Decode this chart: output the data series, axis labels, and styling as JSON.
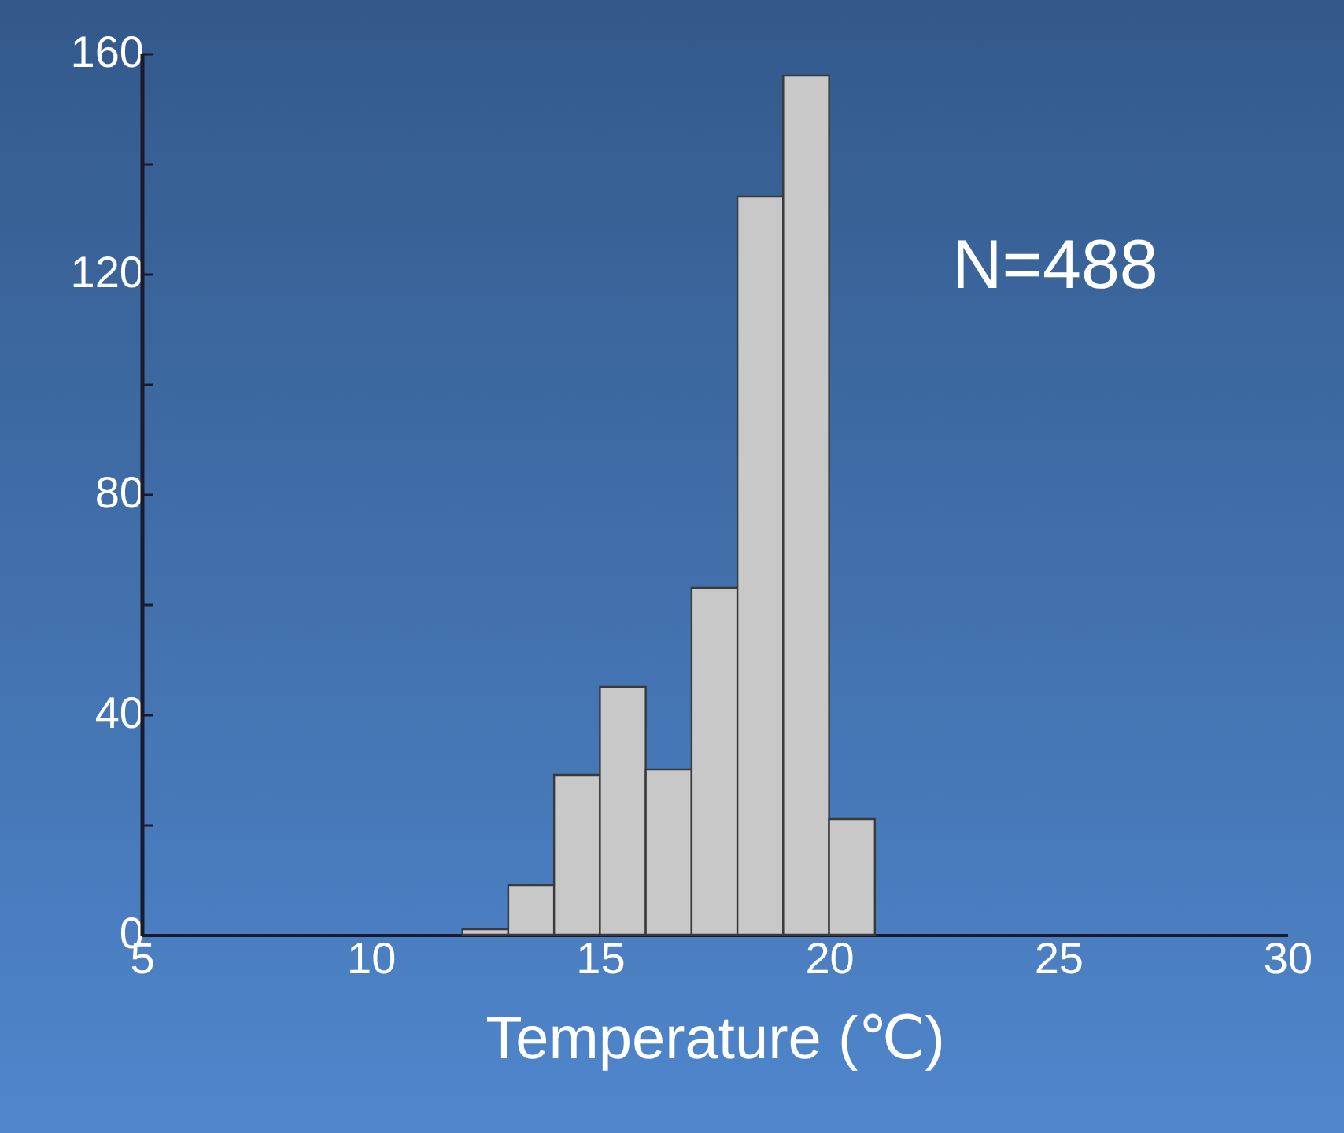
{
  "chart_data": {
    "type": "histogram",
    "xlabel": "Temperature (℃)",
    "bins": [
      12,
      13,
      14,
      15,
      16,
      17,
      18,
      19,
      20,
      21
    ],
    "values": [
      1,
      9,
      29,
      45,
      30,
      63,
      134,
      156,
      21
    ],
    "color": "#c8c8c8",
    "xlim": [
      5,
      30
    ],
    "xticks": [
      5,
      10,
      15,
      20,
      25,
      30
    ],
    "ylim": [
      0,
      160
    ],
    "yticks": [
      0,
      {
        "value": 20,
        "label": null
      },
      40,
      {
        "value": 60,
        "label": null
      },
      80,
      {
        "value": 100,
        "label": null
      },
      120,
      {
        "value": 140,
        "label": null
      },
      160
    ],
    "grid": false,
    "annotations": [
      "N=488"
    ]
  }
}
